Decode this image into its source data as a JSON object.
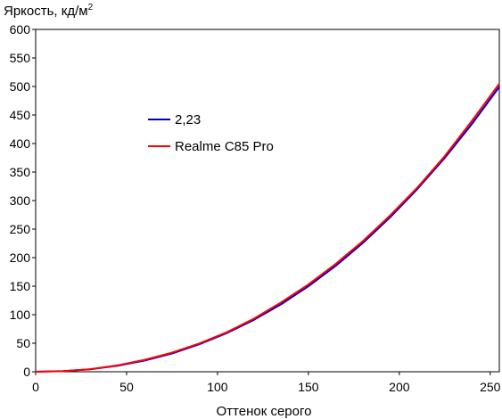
{
  "chart_data": {
    "type": "line",
    "title": "",
    "xlabel": "Оттенок серого",
    "ylabel": "Яркость, кд/м",
    "ylabel_sup": "2",
    "xlim": [
      0,
      255
    ],
    "ylim": [
      0,
      600
    ],
    "x_ticks": [
      0,
      50,
      100,
      150,
      200,
      250
    ],
    "y_ticks": [
      0,
      50,
      100,
      150,
      200,
      250,
      300,
      350,
      400,
      450,
      500,
      550,
      600
    ],
    "grid": false,
    "legend_position": "center-left",
    "series": [
      {
        "name": "2,23",
        "color": "#0000cc",
        "x": [
          0,
          15,
          30,
          45,
          60,
          75,
          90,
          105,
          120,
          135,
          150,
          165,
          180,
          195,
          210,
          225,
          240,
          255
        ],
        "y": [
          0,
          1.2,
          4.4,
          10.5,
          19.7,
          32.1,
          48.1,
          67.6,
          91.0,
          118.3,
          149.8,
          185.6,
          225.9,
          270.8,
          320.4,
          374.9,
          434.5,
          499.3
        ]
      },
      {
        "name": "Realme C85 Pro",
        "color": "#ff0000",
        "x": [
          0,
          15,
          30,
          45,
          60,
          75,
          90,
          105,
          120,
          135,
          150,
          165,
          180,
          195,
          210,
          225,
          240,
          255
        ],
        "y": [
          0,
          1.0,
          4.6,
          11.2,
          21.0,
          33.5,
          49.5,
          69.0,
          93.0,
          121.5,
          153.0,
          189.0,
          229.0,
          274.0,
          323.0,
          378.0,
          440.0,
          505.0
        ]
      }
    ]
  }
}
